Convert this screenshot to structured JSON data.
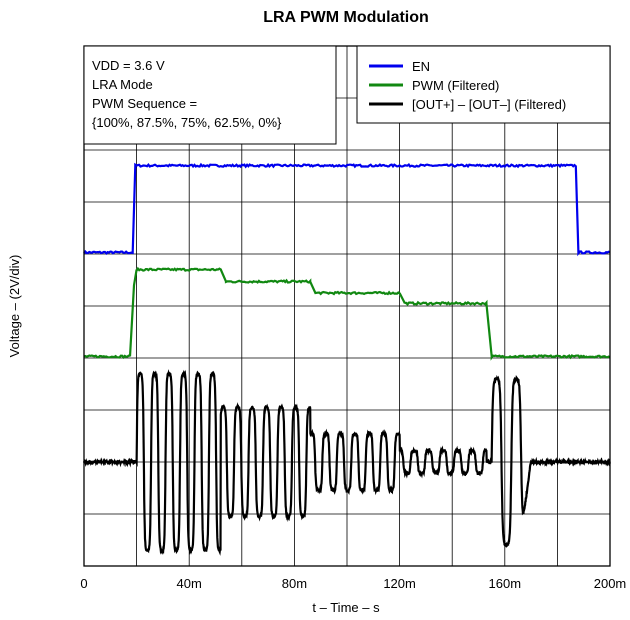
{
  "chart_data": {
    "type": "line",
    "title": "LRA PWM Modulation",
    "xlabel": "t – Time – s",
    "ylabel": "Voltage – (2V/div)",
    "xlim": [
      0,
      200
    ],
    "x_tick_labels": [
      "0",
      "40m",
      "80m",
      "120m",
      "160m",
      "200m"
    ],
    "x_tick_values": [
      0,
      40,
      80,
      120,
      160,
      200
    ],
    "y_divisions": 10,
    "grid": true,
    "conditions": [
      "VDD = 3.6 V",
      "LRA Mode",
      "PWM Sequence =",
      "{100%, 87.5%, 75%, 62.5%, 0%}"
    ],
    "legend_position": "top-right",
    "series": [
      {
        "name": "EN",
        "color": "#0000ee",
        "x": [
          0,
          18.5,
          19.5,
          187,
          188,
          200
        ],
        "y": [
          6.03,
          6.03,
          7.7,
          7.7,
          6.03,
          6.03
        ]
      },
      {
        "name": "PWM (Filtered)",
        "color": "#118811",
        "x": [
          0,
          17.5,
          19,
          20,
          52,
          54,
          86,
          88,
          120,
          122,
          153,
          155,
          200
        ],
        "y": [
          4.03,
          4.03,
          5.4,
          5.7,
          5.7,
          5.47,
          5.47,
          5.25,
          5.25,
          5.05,
          5.05,
          4.03,
          4.03
        ]
      },
      {
        "name": "[OUT+] – [OUT–] (Filtered)",
        "color": "#000000",
        "baseline": 2.0,
        "segments": [
          {
            "start": 20,
            "end": 52,
            "amplitude": 1.7,
            "period": 5.5,
            "phase": 0
          },
          {
            "start": 52,
            "end": 86,
            "amplitude": 1.05,
            "period": 5.5,
            "phase": 0.5
          },
          {
            "start": 86,
            "end": 120,
            "amplitude": 0.55,
            "period": 5.5,
            "phase": 1.0
          },
          {
            "start": 120,
            "end": 153,
            "amplitude": 0.22,
            "period": 5.5,
            "phase": 1.5
          },
          {
            "start": 155,
            "end": 170,
            "amplitude": 1.6,
            "period": 7.5,
            "phase": 0,
            "decay": true
          }
        ]
      }
    ]
  }
}
